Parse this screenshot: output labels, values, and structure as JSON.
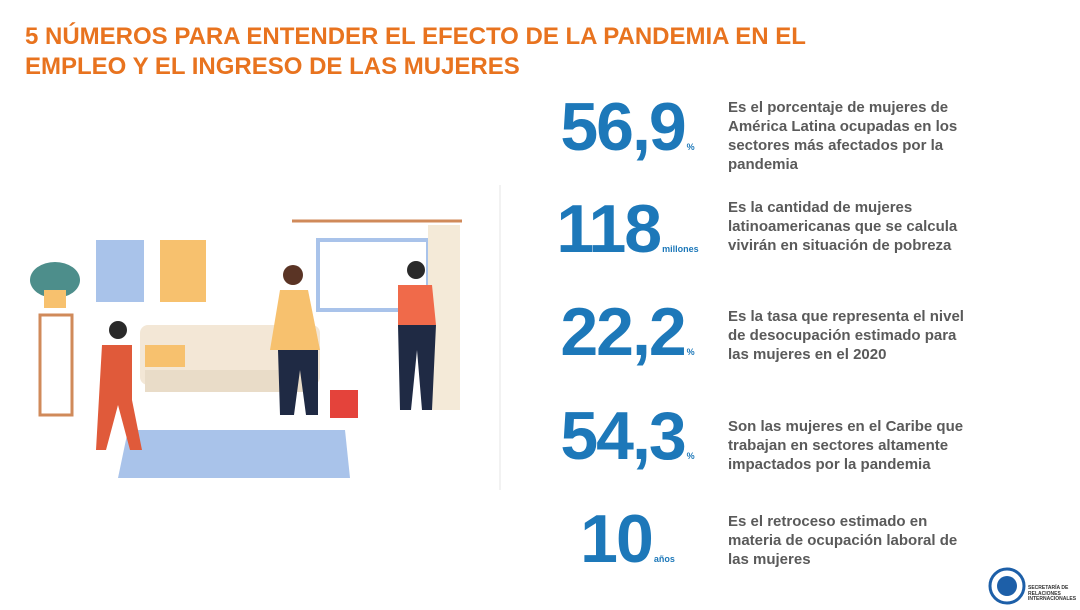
{
  "header": {
    "title_lines": [
      "5 NÚMEROS PARA ENTENDER EL EFECTO DE LA PANDEMIA EN EL",
      "EMPLEO Y EL INGRESO DE LAS MUJERES"
    ]
  },
  "stats": [
    {
      "number": "56,9",
      "unit": "%",
      "lines": [
        "Es el porcentaje de mujeres de",
        "América Latina ocupadas en los",
        "sectores más afectados por la",
        "pandemia"
      ]
    },
    {
      "number": "118",
      "unit": "millones",
      "lines": [
        "Es la cantidad de  mujeres",
        "latinoamericanas que se calcula",
        "vivirán en situación de pobreza"
      ]
    },
    {
      "number": "22,2",
      "unit": "%",
      "lines": [
        "Es la tasa que representa el nivel",
        "de desocupación estimado para",
        "las mujeres en el 2020"
      ]
    },
    {
      "number": "54,3",
      "unit": "%",
      "lines": [
        "Son las mujeres en el Caribe que",
        "trabajan en sectores altamente",
        "impactados por la pandemia"
      ]
    },
    {
      "number": "10",
      "unit": "años",
      "lines": [
        "Es el retroceso estimado en",
        "materia de ocupación laboral de",
        "las mujeres"
      ]
    }
  ],
  "logo": {
    "lines": [
      "SECRETARÍA DE",
      "RELACIONES",
      "INTERNACIONALES"
    ]
  }
}
